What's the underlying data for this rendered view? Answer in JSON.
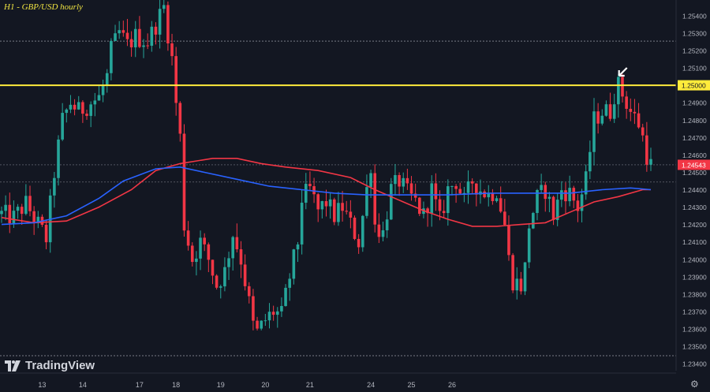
{
  "chart_data": {
    "type": "candlestick",
    "title": "H1 - GBP/USD hourly",
    "y_ticks": [
      "1.25400",
      "1.25300",
      "1.25200",
      "1.25100",
      "1.25000",
      "1.24900",
      "1.24800",
      "1.24700",
      "1.24600",
      "1.24543",
      "1.24500",
      "1.24400",
      "1.24300",
      "1.24200",
      "1.24100",
      "1.24000",
      "1.23900",
      "1.23800",
      "1.23700",
      "1.23600",
      "1.23500",
      "1.23400"
    ],
    "ylim": [
      1.2336,
      1.2549
    ],
    "x_ticks": [
      "13",
      "14",
      "17",
      "18",
      "19",
      "20",
      "21",
      "24",
      "25",
      "26"
    ],
    "horizontal_line": {
      "value": 1.25,
      "label": "1.25000",
      "color": "#ffeb3b"
    },
    "last_price": {
      "value": 1.24543,
      "label": "1.24543",
      "color": "#f23645"
    },
    "colors": {
      "up": "#26a69a",
      "down": "#f23645",
      "ma_fast": "#2962ff",
      "ma_slow": "#f23645"
    },
    "series_close_path": [
      [
        0,
        1.2426
      ],
      [
        3,
        1.2424
      ],
      [
        6,
        1.2432
      ],
      [
        9,
        1.242
      ],
      [
        11,
        1.2412
      ],
      [
        13,
        1.245
      ],
      [
        15,
        1.248
      ],
      [
        17,
        1.249
      ],
      [
        19,
        1.2485
      ],
      [
        22,
        1.249
      ],
      [
        24,
        1.2493
      ],
      [
        26,
        1.2505
      ],
      [
        27,
        1.252
      ],
      [
        29,
        1.253
      ],
      [
        31,
        1.2523
      ],
      [
        33,
        1.2528
      ],
      [
        36,
        1.2525
      ],
      [
        38,
        1.2535
      ],
      [
        40,
        1.2545
      ],
      [
        41,
        1.253
      ],
      [
        42,
        1.2515
      ],
      [
        43,
        1.249
      ],
      [
        44,
        1.247
      ],
      [
        45,
        1.242
      ],
      [
        47,
        1.24
      ],
      [
        49,
        1.241
      ],
      [
        51,
        1.24
      ],
      [
        53,
        1.2385
      ],
      [
        55,
        1.2393
      ],
      [
        57,
        1.2415
      ],
      [
        59,
        1.24
      ],
      [
        61,
        1.2375
      ],
      [
        62,
        1.2362
      ],
      [
        63,
        1.2358
      ],
      [
        65,
        1.2365
      ],
      [
        67,
        1.237
      ],
      [
        69,
        1.2368
      ],
      [
        71,
        1.239
      ],
      [
        73,
        1.241
      ],
      [
        74,
        1.2435
      ],
      [
        76,
        1.244
      ],
      [
        78,
        1.2428
      ],
      [
        80,
        1.2433
      ],
      [
        82,
        1.2425
      ],
      [
        84,
        1.243
      ],
      [
        86,
        1.242
      ],
      [
        88,
        1.241
      ],
      [
        90,
        1.244
      ],
      [
        91,
        1.2455
      ],
      [
        92,
        1.242
      ],
      [
        94,
        1.2415
      ],
      [
        96,
        1.244
      ],
      [
        98,
        1.2445
      ],
      [
        100,
        1.2438
      ],
      [
        102,
        1.2433
      ],
      [
        104,
        1.2425
      ],
      [
        106,
        1.244
      ],
      [
        108,
        1.2422
      ],
      [
        110,
        1.244
      ],
      [
        112,
        1.2445
      ],
      [
        114,
        1.2433
      ],
      [
        116,
        1.2445
      ],
      [
        118,
        1.244
      ],
      [
        120,
        1.2437
      ],
      [
        122,
        1.244
      ],
      [
        124,
        1.242
      ],
      [
        125,
        1.24
      ],
      [
        126,
        1.2388
      ],
      [
        128,
        1.2385
      ],
      [
        129,
        1.2395
      ],
      [
        130,
        1.242
      ],
      [
        132,
        1.2435
      ],
      [
        134,
        1.244
      ],
      [
        136,
        1.2425
      ],
      [
        138,
        1.244
      ],
      [
        140,
        1.2438
      ],
      [
        142,
        1.243
      ],
      [
        144,
        1.2445
      ],
      [
        146,
        1.248
      ],
      [
        148,
        1.2485
      ],
      [
        150,
        1.2485
      ],
      [
        151,
        1.2495
      ],
      [
        152,
        1.25
      ],
      [
        153,
        1.2495
      ],
      [
        155,
        1.2485
      ],
      [
        157,
        1.2478
      ],
      [
        158,
        1.247
      ],
      [
        159,
        1.246
      ],
      [
        160,
        1.2454
      ]
    ],
    "ma_fast_path": [
      [
        0,
        1.242
      ],
      [
        8,
        1.2421
      ],
      [
        16,
        1.2425
      ],
      [
        24,
        1.2435
      ],
      [
        30,
        1.2445
      ],
      [
        38,
        1.2452
      ],
      [
        44,
        1.2453
      ],
      [
        50,
        1.245
      ],
      [
        58,
        1.2446
      ],
      [
        66,
        1.2442
      ],
      [
        74,
        1.244
      ],
      [
        82,
        1.2438
      ],
      [
        90,
        1.2437
      ],
      [
        100,
        1.2437
      ],
      [
        110,
        1.2437
      ],
      [
        120,
        1.2438
      ],
      [
        130,
        1.2438
      ],
      [
        140,
        1.2438
      ],
      [
        148,
        1.244
      ],
      [
        155,
        1.2441
      ],
      [
        160,
        1.244
      ]
    ],
    "ma_slow_path": [
      [
        0,
        1.2424
      ],
      [
        8,
        1.2421
      ],
      [
        16,
        1.2422
      ],
      [
        24,
        1.243
      ],
      [
        32,
        1.244
      ],
      [
        38,
        1.2451
      ],
      [
        44,
        1.2455
      ],
      [
        52,
        1.2458
      ],
      [
        58,
        1.2458
      ],
      [
        64,
        1.2455
      ],
      [
        70,
        1.2453
      ],
      [
        78,
        1.2451
      ],
      [
        86,
        1.2447
      ],
      [
        92,
        1.244
      ],
      [
        98,
        1.2434
      ],
      [
        104,
        1.2428
      ],
      [
        110,
        1.2423
      ],
      [
        116,
        1.2419
      ],
      [
        122,
        1.2419
      ],
      [
        128,
        1.242
      ],
      [
        134,
        1.2421
      ],
      [
        140,
        1.2427
      ],
      [
        146,
        1.2433
      ],
      [
        152,
        1.2436
      ],
      [
        158,
        1.244
      ],
      [
        160,
        1.244
      ]
    ],
    "annotations": [
      {
        "type": "arrow",
        "near_value": 1.2505,
        "color": "#ffffff"
      }
    ]
  },
  "branding": {
    "title": "H1 - GBP/USD hourly",
    "logo_text": "TradingView",
    "settings_icon": "gear-icon"
  }
}
